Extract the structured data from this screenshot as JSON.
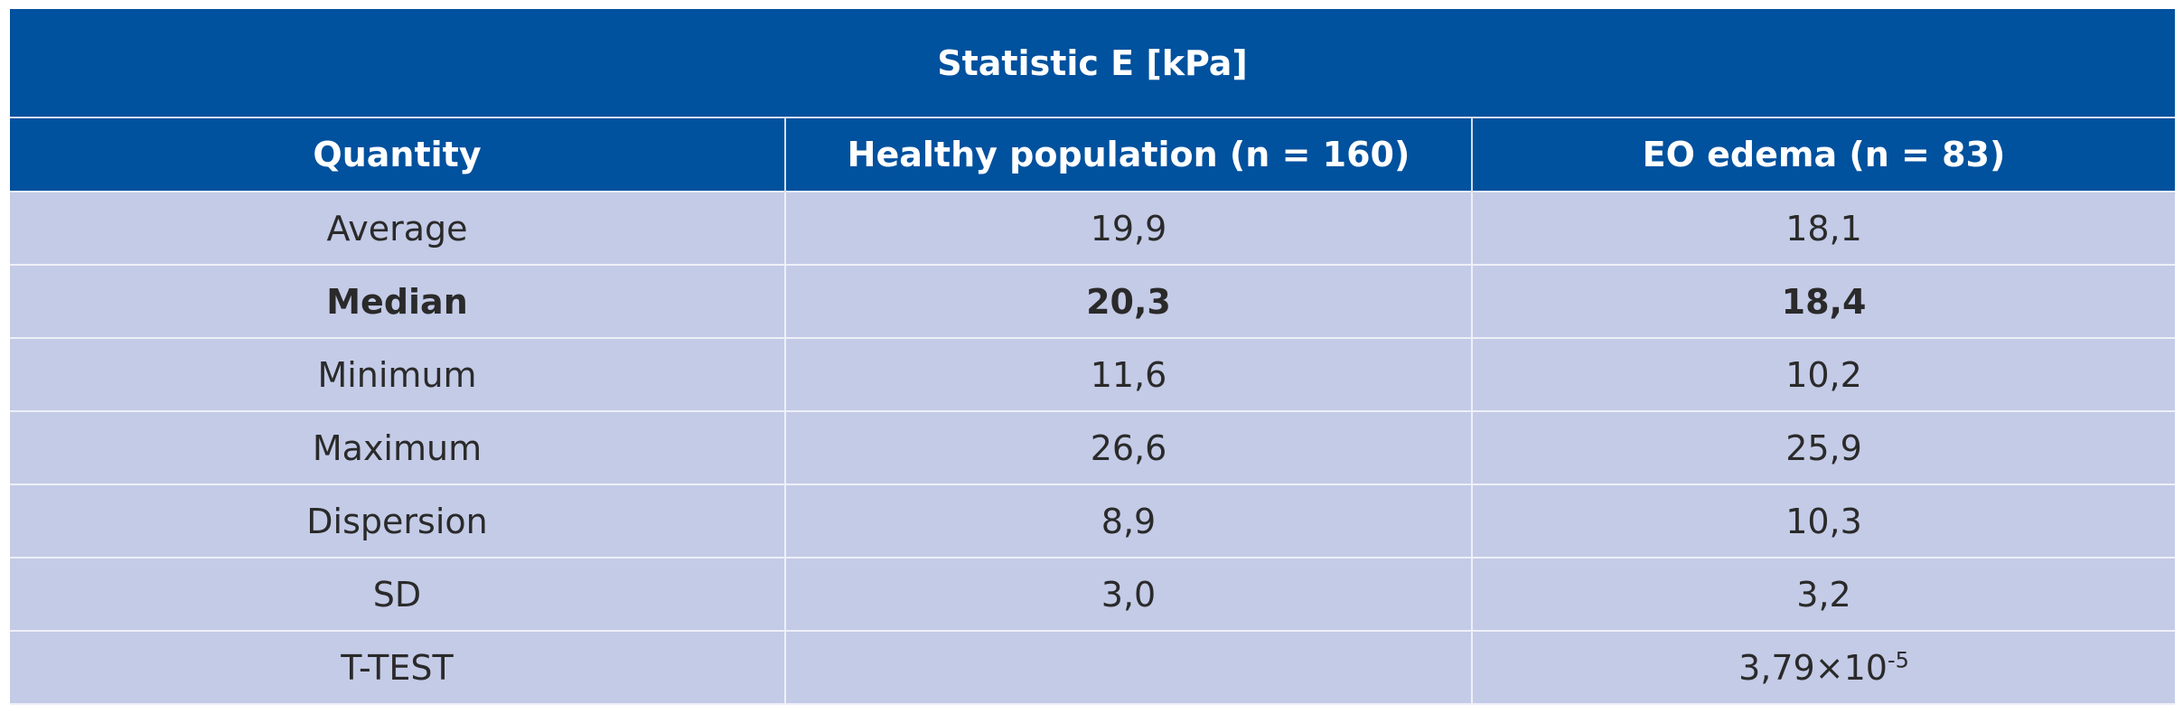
{
  "table": {
    "title": "Statistic E [kPa]",
    "headers": [
      "Quantity",
      "Healthy population (n = 160)",
      "EO edema (n = 83)"
    ],
    "rows": [
      {
        "label": "Average",
        "healthy": "19,9",
        "edema": "18,1"
      },
      {
        "label": "Median",
        "healthy": "20,3",
        "edema": "18,4"
      },
      {
        "label": "Minimum",
        "healthy": "11,6",
        "edema": "10,2"
      },
      {
        "label": "Maximum",
        "healthy": "26,6",
        "edema": "25,9"
      },
      {
        "label": "Dispersion",
        "healthy": "8,9",
        "edema": "10,3"
      },
      {
        "label": "SD",
        "healthy": "3,0",
        "edema": "3,2"
      },
      {
        "label": "T-TEST",
        "healthy": "",
        "edema_base": "3,79×10",
        "edema_exp": "-5"
      }
    ]
  },
  "colors": {
    "header_bg": "#00519e",
    "header_text": "#ffffff",
    "row_bg": "#c4cbe7",
    "row_text": "#2a2a2a"
  }
}
